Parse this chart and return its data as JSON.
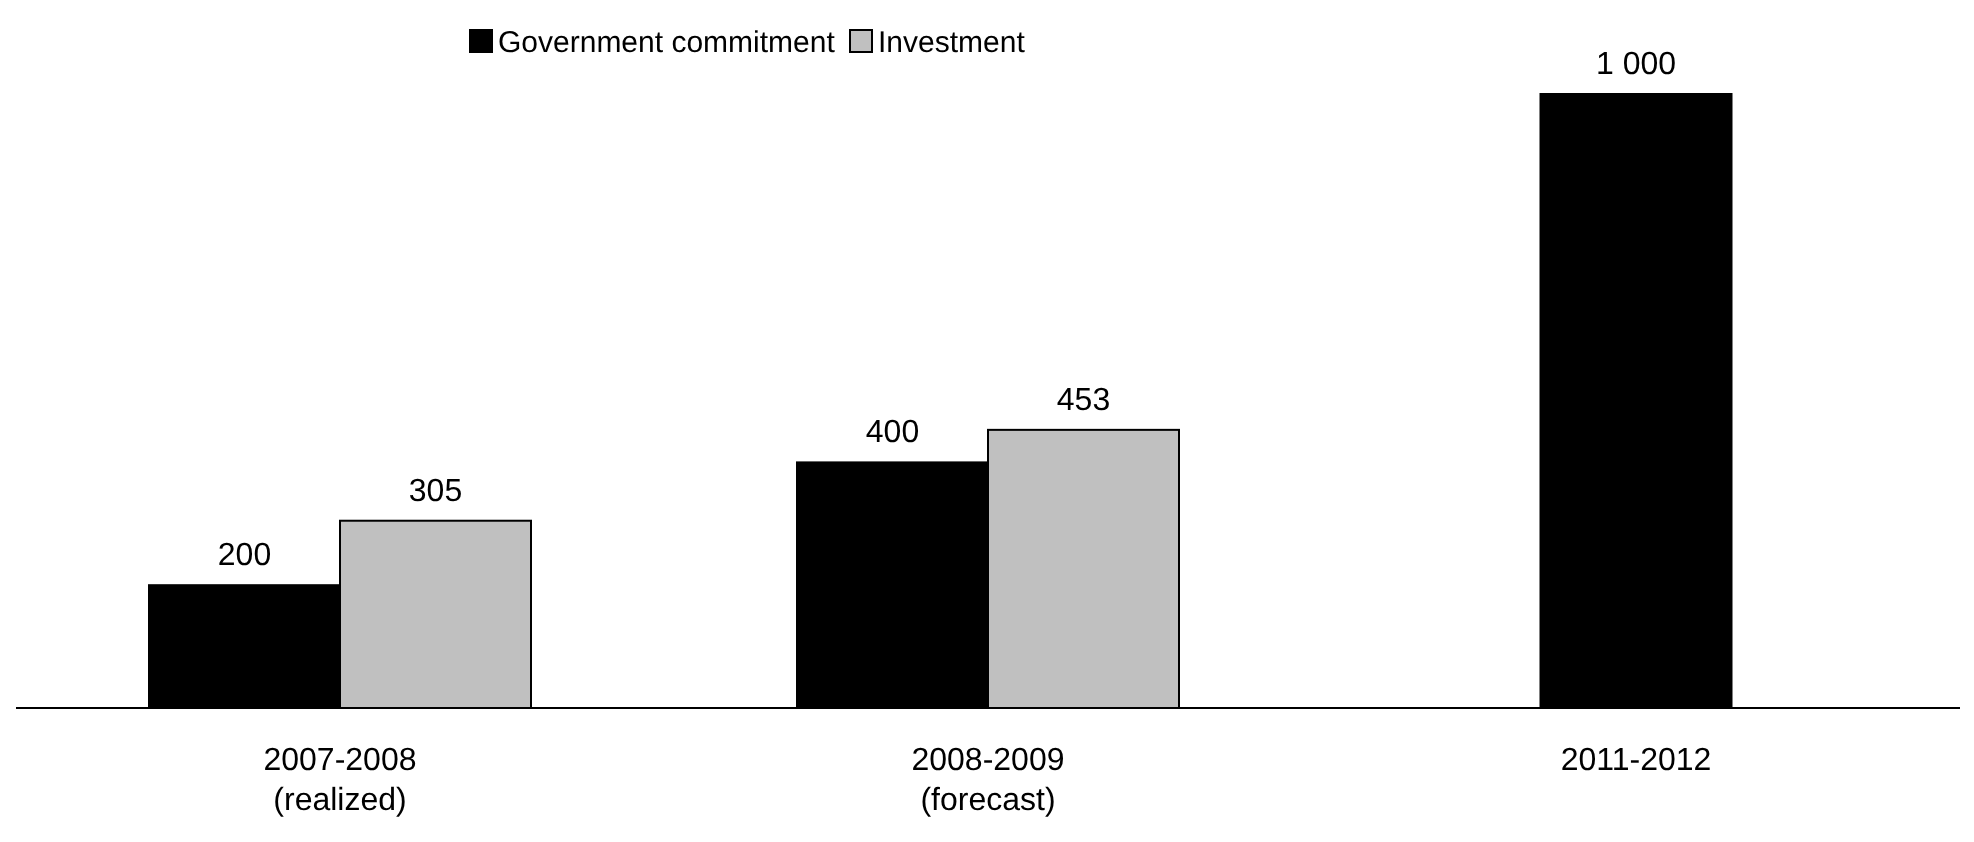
{
  "chart_data": {
    "type": "bar",
    "categories": [
      "2007-2008\n(realized)",
      "2008-2009\n(forecast)",
      "2011-2012"
    ],
    "series": [
      {
        "name": "Government commitment",
        "color": "#000000",
        "values": [
          200,
          400,
          1000
        ],
        "value_labels": [
          "200",
          "400",
          "1 000"
        ]
      },
      {
        "name": "Investment",
        "color": "#c0c0c0",
        "values": [
          305,
          453,
          null
        ],
        "value_labels": [
          "305",
          "453",
          null
        ]
      }
    ],
    "legend": "top",
    "grid": false
  }
}
